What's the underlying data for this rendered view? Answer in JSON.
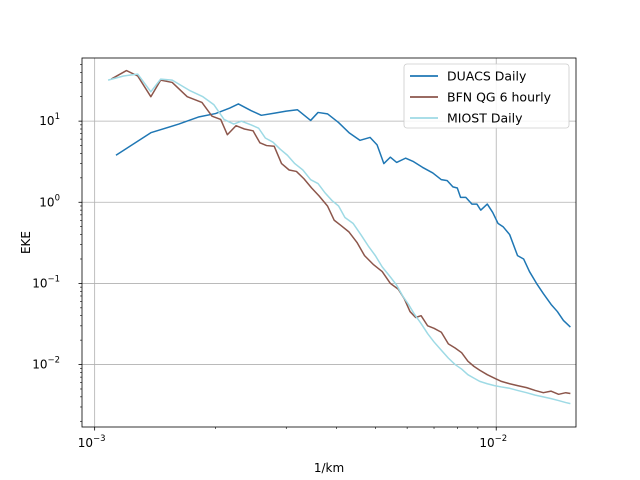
{
  "chart_data": {
    "type": "line",
    "xlabel": "1/km",
    "ylabel": "EKE",
    "xscale": "log",
    "yscale": "log",
    "xlim": [
      0.00093,
      0.0158
    ],
    "ylim": [
      0.0017,
      60
    ],
    "grid": true,
    "legend_position": "top-right",
    "x_ticks": [
      {
        "value": 0.001,
        "label": "10",
        "exp": "−3"
      },
      {
        "value": 0.01,
        "label": "10",
        "exp": "−2"
      }
    ],
    "y_ticks": [
      {
        "value": 10,
        "label": "10",
        "exp": "1"
      },
      {
        "value": 1,
        "label": "10",
        "exp": "0"
      },
      {
        "value": 0.1,
        "label": "10",
        "exp": "−1"
      },
      {
        "value": 0.01,
        "label": "10",
        "exp": "−2"
      }
    ],
    "series": [
      {
        "name": "DUACS Daily",
        "color": "#1f77b4",
        "points": [
          [
            0.00113,
            3.8
          ],
          [
            0.00138,
            7.2
          ],
          [
            0.00162,
            9.2
          ],
          [
            0.00182,
            11.3
          ],
          [
            0.002,
            12.4
          ],
          [
            0.00217,
            14.5
          ],
          [
            0.00228,
            16.3
          ],
          [
            0.00245,
            13.5
          ],
          [
            0.0026,
            11.8
          ],
          [
            0.00282,
            12.6
          ],
          [
            0.003,
            13.3
          ],
          [
            0.0032,
            13.8
          ],
          [
            0.00345,
            10.2
          ],
          [
            0.0036,
            12.8
          ],
          [
            0.0038,
            12.3
          ],
          [
            0.00405,
            9.6
          ],
          [
            0.0043,
            7.2
          ],
          [
            0.00458,
            5.8
          ],
          [
            0.00485,
            6.3
          ],
          [
            0.00505,
            5.1
          ],
          [
            0.00525,
            3.0
          ],
          [
            0.00545,
            3.6
          ],
          [
            0.00565,
            3.1
          ],
          [
            0.00595,
            3.5
          ],
          [
            0.0062,
            3.2
          ],
          [
            0.00655,
            2.7
          ],
          [
            0.00695,
            2.3
          ],
          [
            0.0073,
            1.9
          ],
          [
            0.00755,
            1.85
          ],
          [
            0.0078,
            1.55
          ],
          [
            0.008,
            1.5
          ],
          [
            0.00815,
            1.15
          ],
          [
            0.0084,
            1.15
          ],
          [
            0.0087,
            0.95
          ],
          [
            0.00895,
            0.95
          ],
          [
            0.00915,
            0.8
          ],
          [
            0.0095,
            0.95
          ],
          [
            0.0098,
            0.75
          ],
          [
            0.0101,
            0.55
          ],
          [
            0.0104,
            0.5
          ],
          [
            0.0108,
            0.4
          ],
          [
            0.0113,
            0.22
          ],
          [
            0.0117,
            0.2
          ],
          [
            0.0121,
            0.14
          ],
          [
            0.0126,
            0.1
          ],
          [
            0.0131,
            0.075
          ],
          [
            0.0137,
            0.055
          ],
          [
            0.0142,
            0.045
          ],
          [
            0.0147,
            0.035
          ],
          [
            0.0153,
            0.029
          ]
        ]
      },
      {
        "name": "BFN QG 6 hourly",
        "color": "#8c564b",
        "points": [
          [
            0.0011,
            33
          ],
          [
            0.0012,
            42
          ],
          [
            0.00128,
            36
          ],
          [
            0.00138,
            20
          ],
          [
            0.00146,
            32
          ],
          [
            0.00156,
            30
          ],
          [
            0.0017,
            20
          ],
          [
            0.00185,
            17
          ],
          [
            0.00196,
            11.5
          ],
          [
            0.00206,
            10.5
          ],
          [
            0.00214,
            6.8
          ],
          [
            0.00225,
            8.8
          ],
          [
            0.00236,
            8.0
          ],
          [
            0.00248,
            7.6
          ],
          [
            0.00258,
            5.4
          ],
          [
            0.00268,
            5.0
          ],
          [
            0.0028,
            4.9
          ],
          [
            0.00292,
            3.0
          ],
          [
            0.00305,
            2.5
          ],
          [
            0.00318,
            2.4
          ],
          [
            0.00332,
            1.95
          ],
          [
            0.00347,
            1.5
          ],
          [
            0.00362,
            1.2
          ],
          [
            0.0038,
            0.9
          ],
          [
            0.00395,
            0.6
          ],
          [
            0.0041,
            0.52
          ],
          [
            0.0043,
            0.43
          ],
          [
            0.0045,
            0.32
          ],
          [
            0.0047,
            0.22
          ],
          [
            0.00495,
            0.17
          ],
          [
            0.0052,
            0.14
          ],
          [
            0.00545,
            0.1
          ],
          [
            0.0057,
            0.085
          ],
          [
            0.0059,
            0.065
          ],
          [
            0.0061,
            0.045
          ],
          [
            0.0063,
            0.038
          ],
          [
            0.0065,
            0.04
          ],
          [
            0.00675,
            0.03
          ],
          [
            0.007,
            0.028
          ],
          [
            0.0073,
            0.025
          ],
          [
            0.0076,
            0.018
          ],
          [
            0.0079,
            0.016
          ],
          [
            0.0082,
            0.014
          ],
          [
            0.0085,
            0.011
          ],
          [
            0.0088,
            0.0095
          ],
          [
            0.0091,
            0.0085
          ],
          [
            0.0095,
            0.0075
          ],
          [
            0.0099,
            0.0068
          ],
          [
            0.0103,
            0.0062
          ],
          [
            0.0108,
            0.0058
          ],
          [
            0.0113,
            0.0055
          ],
          [
            0.0119,
            0.0052
          ],
          [
            0.0125,
            0.0048
          ],
          [
            0.0131,
            0.0045
          ],
          [
            0.0137,
            0.0047
          ],
          [
            0.0143,
            0.0043
          ],
          [
            0.0149,
            0.0045
          ],
          [
            0.0153,
            0.0044
          ]
        ]
      },
      {
        "name": "MIOST Daily",
        "color": "#9edae5",
        "points": [
          [
            0.00108,
            32
          ],
          [
            0.00118,
            36
          ],
          [
            0.00128,
            38
          ],
          [
            0.00138,
            23
          ],
          [
            0.00146,
            33
          ],
          [
            0.00156,
            32
          ],
          [
            0.00172,
            24
          ],
          [
            0.00186,
            20
          ],
          [
            0.00198,
            16
          ],
          [
            0.0021,
            10.5
          ],
          [
            0.00222,
            9.2
          ],
          [
            0.00232,
            10
          ],
          [
            0.00245,
            9.0
          ],
          [
            0.00256,
            8.2
          ],
          [
            0.00266,
            6.2
          ],
          [
            0.00278,
            5.5
          ],
          [
            0.0029,
            4.5
          ],
          [
            0.00302,
            3.8
          ],
          [
            0.00315,
            3.0
          ],
          [
            0.0033,
            2.5
          ],
          [
            0.00345,
            1.9
          ],
          [
            0.0036,
            1.7
          ],
          [
            0.00375,
            1.3
          ],
          [
            0.0039,
            1.05
          ],
          [
            0.00405,
            0.9
          ],
          [
            0.0042,
            0.65
          ],
          [
            0.0044,
            0.55
          ],
          [
            0.0046,
            0.4
          ],
          [
            0.0048,
            0.29
          ],
          [
            0.005,
            0.22
          ],
          [
            0.0052,
            0.16
          ],
          [
            0.00545,
            0.12
          ],
          [
            0.00565,
            0.095
          ],
          [
            0.00585,
            0.07
          ],
          [
            0.00605,
            0.055
          ],
          [
            0.00625,
            0.042
          ],
          [
            0.0065,
            0.032
          ],
          [
            0.00675,
            0.024
          ],
          [
            0.007,
            0.019
          ],
          [
            0.0073,
            0.015
          ],
          [
            0.0076,
            0.012
          ],
          [
            0.0079,
            0.01
          ],
          [
            0.0082,
            0.0088
          ],
          [
            0.0085,
            0.0075
          ],
          [
            0.0088,
            0.0068
          ],
          [
            0.0091,
            0.0062
          ],
          [
            0.0095,
            0.0058
          ],
          [
            0.0099,
            0.0055
          ],
          [
            0.0103,
            0.0053
          ],
          [
            0.0108,
            0.0051
          ],
          [
            0.0113,
            0.0048
          ],
          [
            0.0119,
            0.0045
          ],
          [
            0.0125,
            0.0042
          ],
          [
            0.0131,
            0.004
          ],
          [
            0.0137,
            0.0038
          ],
          [
            0.0143,
            0.0036
          ],
          [
            0.0149,
            0.0034
          ],
          [
            0.0153,
            0.0033
          ]
        ]
      }
    ]
  }
}
